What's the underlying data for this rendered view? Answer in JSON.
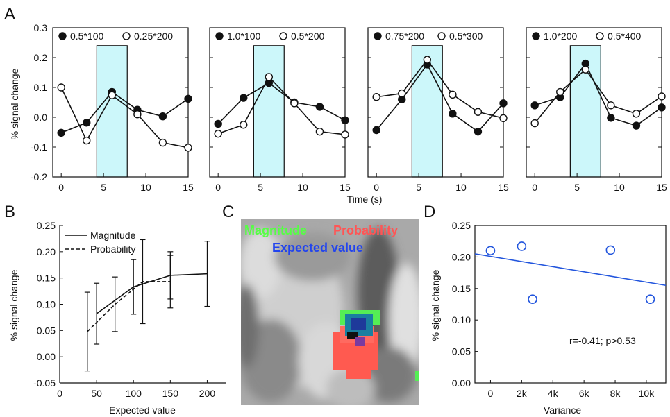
{
  "chart_data": [
    {
      "panel": "A",
      "type": "line",
      "ylabel": "% signal change",
      "xlabel": "Time (s)",
      "ylim": [
        -0.2,
        0.3
      ],
      "xlim": [
        -1,
        15
      ],
      "yticks": [
        "0.3",
        "0.2",
        "0.1",
        "0.0",
        "-0.1",
        "-0.2"
      ],
      "xticks": [
        "0",
        "5",
        "10",
        "15"
      ],
      "x": [
        0,
        3,
        6,
        9,
        12,
        15
      ],
      "shaded_interval": [
        4.2,
        7.8
      ],
      "subplots": [
        {
          "series": [
            {
              "name": "0.5*100",
              "marker": "filled",
              "values": [
                -0.052,
                -0.018,
                0.085,
                0.025,
                0.003,
                0.062
              ]
            },
            {
              "name": "0.25*200",
              "marker": "open",
              "values": [
                0.1,
                -0.078,
                0.074,
                0.01,
                -0.085,
                -0.102
              ]
            }
          ]
        },
        {
          "series": [
            {
              "name": "1.0*100",
              "marker": "filled",
              "values": [
                -0.022,
                0.065,
                0.115,
                0.05,
                0.035,
                -0.01
              ]
            },
            {
              "name": "0.5*200",
              "marker": "open",
              "values": [
                -0.055,
                -0.025,
                0.135,
                0.047,
                -0.048,
                -0.058
              ]
            }
          ]
        },
        {
          "series": [
            {
              "name": "0.75*200",
              "marker": "filled",
              "values": [
                -0.043,
                0.06,
                0.177,
                0.012,
                -0.048,
                0.047
              ]
            },
            {
              "name": "0.5*300",
              "marker": "open",
              "values": [
                0.068,
                0.08,
                0.193,
                0.076,
                0.018,
                -0.003
              ]
            }
          ]
        },
        {
          "series": [
            {
              "name": "1.0*200",
              "marker": "filled",
              "values": [
                0.04,
                0.067,
                0.18,
                -0.002,
                -0.028,
                0.033
              ]
            },
            {
              "name": "0.5*400",
              "marker": "open",
              "values": [
                -0.02,
                0.085,
                0.16,
                0.04,
                0.012,
                0.07
              ]
            }
          ]
        }
      ]
    },
    {
      "panel": "B",
      "type": "line",
      "xlabel": "Expected value",
      "ylabel": "% signal change",
      "xlim": [
        0,
        225
      ],
      "ylim": [
        -0.05,
        0.25
      ],
      "xticks": [
        "0",
        "50",
        "100",
        "150",
        "200"
      ],
      "yticks": [
        "0.25",
        "0.20",
        "0.15",
        "0.10",
        "0.05",
        "0.00",
        "-0.05"
      ],
      "series": [
        {
          "name": "Magnitude",
          "style": "solid",
          "x": [
            50,
            100,
            150,
            200
          ],
          "values": [
            0.082,
            0.133,
            0.155,
            0.158
          ],
          "errors": [
            0.058,
            0.052,
            0.045,
            0.062
          ]
        },
        {
          "name": "Probability",
          "style": "dashed",
          "x": [
            37.5,
            75,
            112.5,
            150
          ],
          "values": [
            0.048,
            0.1,
            0.143,
            0.143
          ],
          "errors": [
            0.075,
            0.052,
            0.08,
            0.05
          ]
        }
      ]
    },
    {
      "panel": "C",
      "type": "heatmap",
      "legend": [
        {
          "label": "Magnitude",
          "color": "#55ff44"
        },
        {
          "label": "Probability",
          "color": "#ff5555"
        },
        {
          "label": "Expected value",
          "color": "#2244ee"
        }
      ]
    },
    {
      "panel": "D",
      "type": "scatter",
      "xlabel": "Variance",
      "ylabel": "% signal change",
      "xlim": [
        -1000,
        11250
      ],
      "ylim": [
        0,
        0.25
      ],
      "xticks": [
        "0",
        "2k",
        "4k",
        "6k",
        "8k",
        "10k"
      ],
      "yticks": [
        "0.25",
        "0.20",
        "0.15",
        "0.10",
        "0.05",
        "0.00"
      ],
      "points": [
        {
          "x": 0,
          "y": 0.21
        },
        {
          "x": 2000,
          "y": 0.217
        },
        {
          "x": 2700,
          "y": 0.133
        },
        {
          "x": 7700,
          "y": 0.211
        },
        {
          "x": 10250,
          "y": 0.133
        }
      ],
      "fit_line": {
        "x": [
          -1000,
          11250
        ],
        "y": [
          0.205,
          0.155
        ]
      },
      "annotation": "r=-0.41; p>0.53",
      "color": "#2255dd"
    }
  ],
  "panel_letters": [
    "A",
    "B",
    "C",
    "D"
  ]
}
